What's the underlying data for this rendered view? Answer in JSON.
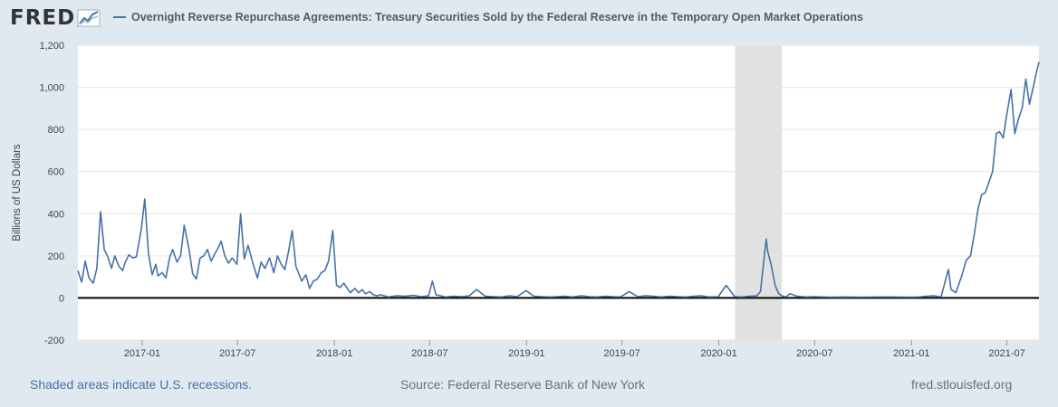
{
  "brand": {
    "logo_text": "FRED"
  },
  "footer": {
    "recession_note": "Shaded areas indicate U.S. recessions.",
    "source": "Source: Federal Reserve Bank of New York",
    "site": "fred.stlouisfed.org"
  },
  "colors": {
    "series": "#4572a7",
    "recession": "#e1e1e1",
    "zero_line": "#000000",
    "grid": "#e6e6e6",
    "background": "#e1e9f0",
    "plot_bg": "#ffffff"
  },
  "icons": {
    "logo_graph": "line-graph-icon"
  },
  "chart_data": {
    "type": "line",
    "title": "Overnight Reverse Repurchase Agreements: Treasury Securities Sold by the Federal Reserve in the Temporary Open Market Operations",
    "xlabel": "",
    "ylabel": "Billions of US Dollars",
    "xlim": [
      "2016-09-01",
      "2021-08-31"
    ],
    "ylim": [
      -200,
      1200
    ],
    "yticks": [
      -200,
      0,
      200,
      400,
      600,
      800,
      1000,
      1200
    ],
    "ytick_labels": [
      "-200",
      "0",
      "200",
      "400",
      "600",
      "800",
      "1,000",
      "1,200"
    ],
    "xticks": [
      "2017-01",
      "2017-07",
      "2018-01",
      "2018-07",
      "2019-01",
      "2019-07",
      "2020-01",
      "2020-07",
      "2021-01",
      "2021-07"
    ],
    "grid": true,
    "legend": "top-left",
    "recessions": [
      [
        "2020-02-01",
        "2020-04-30"
      ]
    ],
    "series": [
      {
        "name": "Overnight Reverse Repurchase Agreements: Treasury Securities Sold by the Federal Reserve in the Temporary Open Market Operations",
        "x": [
          "2016-09-01",
          "2016-09-08",
          "2016-09-15",
          "2016-09-22",
          "2016-09-30",
          "2016-10-07",
          "2016-10-14",
          "2016-10-21",
          "2016-10-28",
          "2016-11-04",
          "2016-11-10",
          "2016-11-18",
          "2016-11-25",
          "2016-11-30",
          "2016-12-07",
          "2016-12-14",
          "2016-12-21",
          "2016-12-30",
          "2017-01-06",
          "2017-01-13",
          "2017-01-20",
          "2017-01-27",
          "2017-01-31",
          "2017-02-08",
          "2017-02-15",
          "2017-02-22",
          "2017-02-28",
          "2017-03-08",
          "2017-03-15",
          "2017-03-22",
          "2017-03-31",
          "2017-04-07",
          "2017-04-14",
          "2017-04-21",
          "2017-04-28",
          "2017-05-05",
          "2017-05-12",
          "2017-05-19",
          "2017-05-26",
          "2017-05-31",
          "2017-06-07",
          "2017-06-14",
          "2017-06-21",
          "2017-06-30",
          "2017-07-07",
          "2017-07-14",
          "2017-07-21",
          "2017-07-31",
          "2017-08-08",
          "2017-08-15",
          "2017-08-22",
          "2017-08-31",
          "2017-09-08",
          "2017-09-15",
          "2017-09-22",
          "2017-09-29",
          "2017-10-06",
          "2017-10-13",
          "2017-10-20",
          "2017-10-31",
          "2017-11-08",
          "2017-11-15",
          "2017-11-22",
          "2017-11-30",
          "2017-12-07",
          "2017-12-14",
          "2017-12-21",
          "2017-12-29",
          "2018-01-05",
          "2018-01-12",
          "2018-01-19",
          "2018-01-31",
          "2018-02-09",
          "2018-02-16",
          "2018-02-23",
          "2018-03-01",
          "2018-03-09",
          "2018-03-16",
          "2018-03-23",
          "2018-03-30",
          "2018-04-13",
          "2018-04-30",
          "2018-05-15",
          "2018-05-31",
          "2018-06-15",
          "2018-06-29",
          "2018-07-06",
          "2018-07-13",
          "2018-07-31",
          "2018-08-15",
          "2018-08-31",
          "2018-09-14",
          "2018-09-28",
          "2018-10-15",
          "2018-10-31",
          "2018-11-15",
          "2018-11-30",
          "2018-12-14",
          "2018-12-31",
          "2019-01-15",
          "2019-01-31",
          "2019-02-15",
          "2019-02-28",
          "2019-03-15",
          "2019-03-29",
          "2019-04-15",
          "2019-04-30",
          "2019-05-15",
          "2019-05-31",
          "2019-06-14",
          "2019-06-28",
          "2019-07-15",
          "2019-07-31",
          "2019-08-15",
          "2019-08-30",
          "2019-09-13",
          "2019-09-30",
          "2019-10-15",
          "2019-10-31",
          "2019-11-15",
          "2019-11-29",
          "2019-12-13",
          "2019-12-31",
          "2020-01-15",
          "2020-01-31",
          "2020-02-14",
          "2020-02-28",
          "2020-03-13",
          "2020-03-20",
          "2020-03-31",
          "2020-04-03",
          "2020-04-10",
          "2020-04-17",
          "2020-04-24",
          "2020-04-30",
          "2020-05-08",
          "2020-05-15",
          "2020-05-29",
          "2020-06-15",
          "2020-06-30",
          "2020-07-15",
          "2020-07-31",
          "2020-08-31",
          "2020-09-30",
          "2020-10-30",
          "2020-11-30",
          "2020-12-31",
          "2021-01-15",
          "2021-01-29",
          "2021-02-12",
          "2021-02-26",
          "2021-03-12",
          "2021-03-17",
          "2021-03-26",
          "2021-03-31",
          "2021-04-07",
          "2021-04-15",
          "2021-04-23",
          "2021-04-30",
          "2021-05-07",
          "2021-05-14",
          "2021-05-21",
          "2021-05-28",
          "2021-06-04",
          "2021-06-11",
          "2021-06-17",
          "2021-06-24",
          "2021-06-30",
          "2021-07-09",
          "2021-07-16",
          "2021-07-23",
          "2021-07-30",
          "2021-08-06",
          "2021-08-13",
          "2021-08-20",
          "2021-08-27",
          "2021-08-31"
        ],
        "values": [
          130,
          75,
          175,
          95,
          70,
          140,
          410,
          230,
          195,
          140,
          200,
          150,
          130,
          170,
          205,
          190,
          195,
          320,
          470,
          210,
          110,
          160,
          105,
          120,
          95,
          190,
          230,
          170,
          200,
          345,
          230,
          115,
          90,
          190,
          200,
          230,
          175,
          210,
          240,
          270,
          200,
          165,
          190,
          160,
          400,
          185,
          250,
          160,
          95,
          170,
          140,
          190,
          120,
          200,
          160,
          135,
          220,
          320,
          150,
          80,
          110,
          45,
          80,
          90,
          120,
          130,
          175,
          320,
          60,
          50,
          70,
          25,
          45,
          25,
          40,
          20,
          30,
          15,
          10,
          15,
          5,
          10,
          8,
          12,
          6,
          10,
          80,
          15,
          5,
          8,
          6,
          10,
          40,
          8,
          6,
          5,
          10,
          6,
          35,
          8,
          6,
          5,
          6,
          8,
          5,
          10,
          6,
          5,
          8,
          6,
          5,
          30,
          6,
          10,
          8,
          5,
          8,
          6,
          5,
          8,
          10,
          5,
          6,
          60,
          6,
          5,
          8,
          10,
          30,
          280,
          220,
          150,
          60,
          20,
          10,
          5,
          20,
          8,
          5,
          6,
          5,
          4,
          5,
          4,
          5,
          5,
          4,
          5,
          8,
          10,
          5,
          135,
          40,
          25,
          60,
          110,
          180,
          200,
          300,
          420,
          490,
          500,
          550,
          600,
          780,
          790,
          760,
          860,
          990,
          780,
          850,
          900,
          1040,
          920,
          1000,
          1080,
          1120
        ]
      }
    ]
  }
}
